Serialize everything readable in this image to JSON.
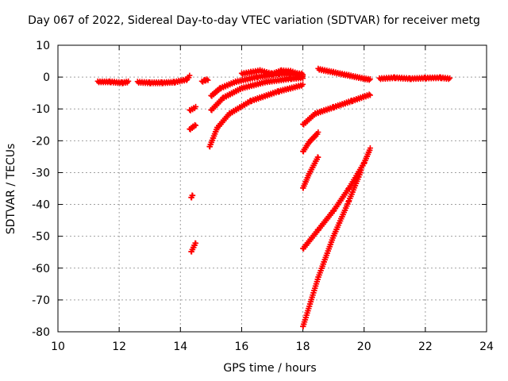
{
  "chart_data": {
    "type": "scatter",
    "title": "Day 067 of 2022, Sidereal Day-to-day VTEC variation (SDTVAR) for receiver metg",
    "xlabel": "GPS time / hours",
    "ylabel": "SDTVAR / TECUs",
    "xlim": [
      10,
      24
    ],
    "ylim": [
      -80,
      10
    ],
    "xticks": [
      10,
      12,
      14,
      16,
      18,
      20,
      22,
      24
    ],
    "yticks": [
      10,
      0,
      -10,
      -20,
      -30,
      -40,
      -50,
      -60,
      -70,
      -80
    ],
    "grid": true,
    "marker": "+",
    "color": "#ff0000",
    "series": [
      {
        "x": [
          11.3,
          11.7,
          12.1,
          12.3
        ],
        "y": [
          -1.5,
          -1.5,
          -1.8,
          -1.5
        ]
      },
      {
        "x": [
          12.6,
          13.0,
          13.4,
          13.8,
          14.2,
          14.3
        ],
        "y": [
          -1.6,
          -1.8,
          -1.8,
          -1.6,
          -0.8,
          0.3
        ]
      },
      {
        "x": [
          14.3,
          14.5
        ],
        "y": [
          -10.5,
          -9.5
        ]
      },
      {
        "x": [
          14.3,
          14.5
        ],
        "y": [
          -16.5,
          -15.0
        ]
      },
      {
        "x": [
          14.35,
          14.4
        ],
        "y": [
          -38.0,
          -37.0
        ]
      },
      {
        "x": [
          14.35,
          14.5
        ],
        "y": [
          -55.0,
          -52.0
        ]
      },
      {
        "x": [
          14.7,
          14.8,
          14.9
        ],
        "y": [
          -1.5,
          -1.0,
          -0.8
        ]
      },
      {
        "x": [
          15.0,
          15.3,
          15.8,
          16.5,
          17.2,
          18.0
        ],
        "y": [
          -6.0,
          -3.5,
          -1.5,
          0.0,
          1.0,
          1.0
        ]
      },
      {
        "x": [
          15.0,
          15.4,
          16.0,
          16.8,
          17.6,
          18.0
        ],
        "y": [
          -10.5,
          -6.5,
          -3.5,
          -1.5,
          -0.5,
          -0.2
        ]
      },
      {
        "x": [
          14.95,
          15.2,
          15.6,
          16.3,
          17.2,
          18.0
        ],
        "y": [
          -22.0,
          -16.0,
          -11.5,
          -7.5,
          -4.5,
          -2.5
        ]
      },
      {
        "x": [
          16.0,
          16.3,
          16.6,
          17.0,
          17.3,
          17.6,
          18.0
        ],
        "y": [
          1.0,
          1.5,
          2.0,
          1.0,
          2.0,
          1.8,
          0.5
        ]
      },
      {
        "x": [
          18.5,
          19.0,
          19.5,
          20.0,
          20.2
        ],
        "y": [
          2.5,
          1.5,
          0.5,
          -0.5,
          -0.8
        ]
      },
      {
        "x": [
          18.0,
          18.4,
          19.0,
          19.6,
          20.2
        ],
        "y": [
          -15.0,
          -11.5,
          -9.5,
          -7.5,
          -5.5
        ]
      },
      {
        "x": [
          18.0,
          18.2,
          18.5
        ],
        "y": [
          -23.5,
          -20.5,
          -17.5
        ]
      },
      {
        "x": [
          18.0,
          18.2,
          18.5
        ],
        "y": [
          -35.0,
          -30.5,
          -25.0
        ]
      },
      {
        "x": [
          18.0,
          18.5,
          19.0,
          19.5,
          20.0,
          20.2
        ],
        "y": [
          -54.0,
          -48.0,
          -42.0,
          -35.0,
          -27.0,
          -22.5
        ]
      },
      {
        "x": [
          18.0,
          18.5,
          19.0,
          19.5,
          19.9
        ],
        "y": [
          -78.5,
          -63.0,
          -50.0,
          -39.0,
          -29.5
        ]
      },
      {
        "x": [
          20.5,
          21.0,
          21.5,
          22.0,
          22.5,
          22.8
        ],
        "y": [
          -0.5,
          -0.2,
          -0.5,
          -0.3,
          -0.2,
          -0.5
        ]
      }
    ]
  }
}
